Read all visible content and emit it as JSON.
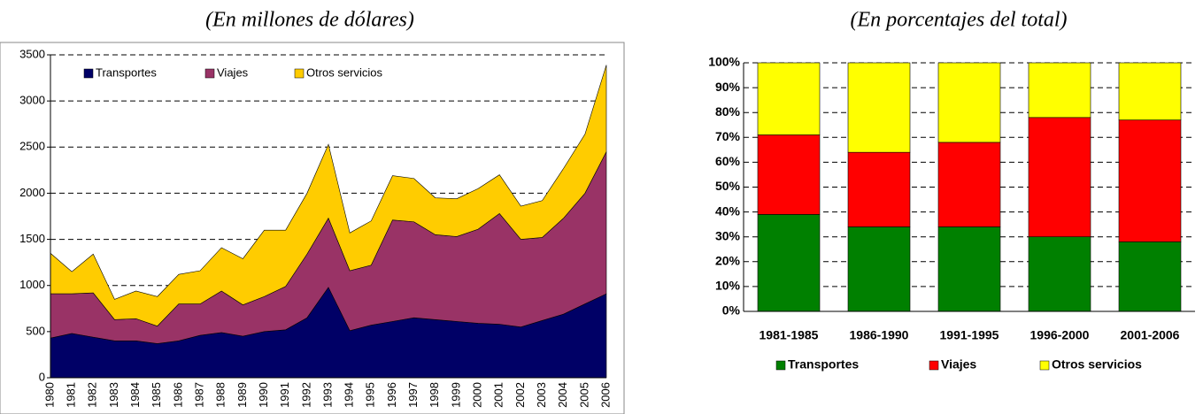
{
  "chart_data": [
    {
      "type": "stacked-area",
      "title": "(En millones de dólares)",
      "categories": [
        "1980",
        "1981",
        "1982",
        "1983",
        "1984",
        "1985",
        "1986",
        "1987",
        "1988",
        "1989",
        "1990",
        "1991",
        "1992",
        "1993",
        "1994",
        "1995",
        "1996",
        "1997",
        "1998",
        "1999",
        "2000",
        "2001",
        "2002",
        "2003",
        "2004",
        "2005",
        "2006"
      ],
      "series": [
        {
          "name": "Transportes",
          "color": "#000066",
          "values": [
            430,
            480,
            440,
            400,
            400,
            370,
            400,
            460,
            490,
            450,
            500,
            520,
            650,
            980,
            510,
            570,
            610,
            650,
            630,
            610,
            590,
            580,
            550,
            620,
            690,
            800,
            910
          ]
        },
        {
          "name": "Viajes",
          "color": "#993366",
          "values": [
            480,
            430,
            480,
            230,
            240,
            190,
            400,
            340,
            450,
            340,
            380,
            470,
            690,
            750,
            650,
            650,
            1100,
            1040,
            920,
            920,
            1020,
            1200,
            950,
            900,
            1040,
            1200,
            1540
          ]
        },
        {
          "name": "Otros servicios",
          "color": "#ffcc00",
          "values": [
            440,
            240,
            420,
            220,
            300,
            320,
            320,
            360,
            470,
            500,
            720,
            610,
            660,
            800,
            410,
            480,
            480,
            470,
            400,
            410,
            440,
            420,
            360,
            400,
            540,
            640,
            940
          ]
        }
      ],
      "ylim": [
        0,
        3500
      ],
      "yticks": [
        0,
        500,
        1000,
        1500,
        2000,
        2500,
        3000,
        3500
      ],
      "grid": true,
      "legend": "top"
    },
    {
      "type": "stacked-bar-percent",
      "title": "(En porcentajes del total)",
      "categories": [
        "1981-1985",
        "1986-1990",
        "1991-1995",
        "1996-2000",
        "2001-2006"
      ],
      "series": [
        {
          "name": "Transportes",
          "color": "#008000",
          "values": [
            39,
            34,
            34,
            30,
            28
          ]
        },
        {
          "name": "Viajes",
          "color": "#ff0000",
          "values": [
            32,
            30,
            34,
            48,
            49
          ]
        },
        {
          "name": "Otros servicios",
          "color": "#ffff00",
          "values": [
            29,
            36,
            32,
            22,
            23
          ]
        }
      ],
      "ylim": [
        0,
        100
      ],
      "yticks": [
        {
          "value": 0,
          "label": "0%"
        },
        {
          "value": 10,
          "label": "10%"
        },
        {
          "value": 20,
          "label": "20%"
        },
        {
          "value": 30,
          "label": "30%"
        },
        {
          "value": 40,
          "label": "40%"
        },
        {
          "value": 50,
          "label": "50%"
        },
        {
          "value": 60,
          "label": "60%"
        },
        {
          "value": 70,
          "label": "70%"
        },
        {
          "value": 80,
          "label": "80%"
        },
        {
          "value": 90,
          "label": "90%"
        },
        {
          "value": 100,
          "label": "100%"
        }
      ],
      "grid": true,
      "legend": "bottom"
    }
  ]
}
